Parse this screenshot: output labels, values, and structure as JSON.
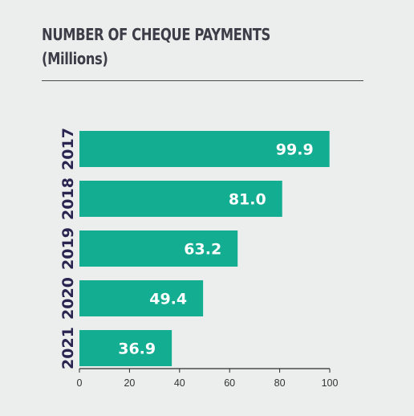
{
  "chart_data": {
    "type": "bar",
    "orientation": "horizontal",
    "title": "NUMBER OF CHEQUE PAYMENTS",
    "subtitle": "(Millions)",
    "categories": [
      "2017",
      "2018",
      "2019",
      "2020",
      "2021"
    ],
    "values": [
      99.9,
      81.0,
      63.2,
      49.4,
      36.9
    ],
    "value_labels": [
      "99.9",
      "81.0",
      "63.2",
      "49.4",
      "36.9"
    ],
    "xlim": [
      0,
      100
    ],
    "x_ticks": [
      "0",
      "20",
      "40",
      "60",
      "80",
      "100"
    ],
    "grid": false,
    "legend": "none",
    "colors": {
      "bar": "#13ad92",
      "axis": "#2b2b2b",
      "category_text": "#2a2550",
      "title_text": "#3d3d48",
      "background": "#eceeee"
    }
  }
}
